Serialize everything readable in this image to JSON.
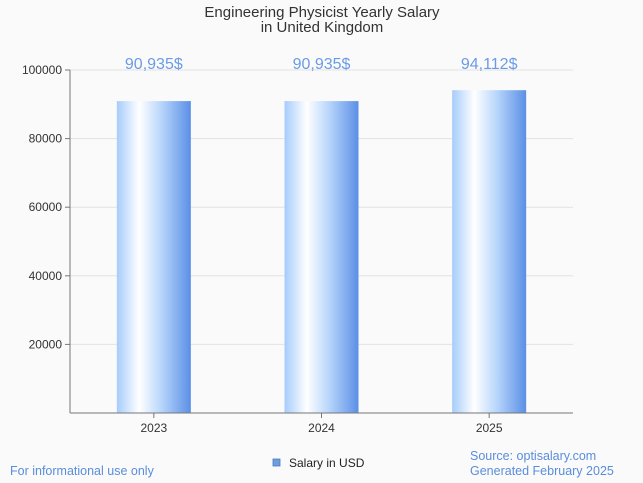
{
  "chart_data": {
    "type": "bar",
    "title": [
      "Engineering Physicist Yearly Salary",
      "in United Kingdom"
    ],
    "categories": [
      "2023",
      "2024",
      "2025"
    ],
    "series": [
      {
        "name": "Salary in USD",
        "values": [
          90935,
          90935,
          94112
        ]
      }
    ],
    "data_labels": [
      "90,935$",
      "90,935$",
      "94,112$"
    ],
    "yticks": [
      "20000",
      "40000",
      "60000",
      "80000",
      "100000"
    ],
    "ylim": [
      0,
      100000
    ],
    "grid": true,
    "legend_position": "bottom-center"
  },
  "footer": {
    "left": "For informational use only",
    "source": "Source: optisalary.com",
    "generated": "Generated February 2025"
  },
  "colors": {
    "bar_light": "#ffffff",
    "bar_mid": "#a8d0ff",
    "bar_dark": "#5b8fe6",
    "label": "#6b9be6",
    "legend_swatch": "#6f9edf"
  }
}
